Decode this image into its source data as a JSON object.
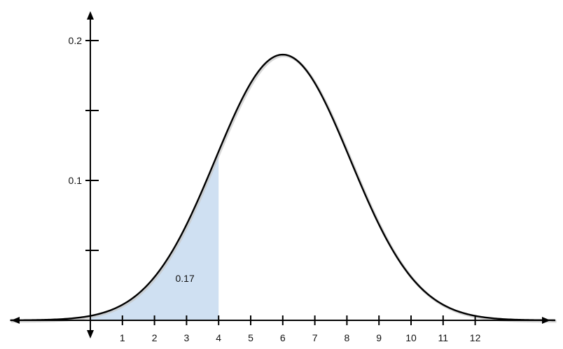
{
  "chart_data": {
    "type": "area",
    "title": "",
    "xlabel": "",
    "ylabel": "",
    "distribution": "normal",
    "mean": 6,
    "sd": 2.1,
    "x_ticks": [
      1,
      2,
      3,
      4,
      5,
      6,
      7,
      8,
      9,
      10,
      11,
      12
    ],
    "y_tick_labels": [
      {
        "value": 0.1,
        "label": "0.1"
      },
      {
        "value": 0.2,
        "label": "0.2"
      }
    ],
    "y_minor_ticks": [
      0.05,
      0.15
    ],
    "xlim": [
      -2.5,
      14.5
    ],
    "ylim": [
      0,
      0.2
    ],
    "shaded_region": {
      "from": 0,
      "to": 4,
      "color": "#cfe0f2"
    },
    "area_label": {
      "text": "0.17",
      "x": 2.95,
      "y": 0.03
    },
    "grid": false,
    "legend": "none"
  }
}
